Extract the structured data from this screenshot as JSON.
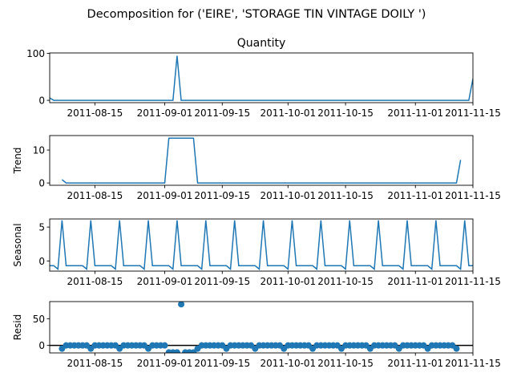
{
  "chart_data": {
    "type": "line",
    "title": "Decomposition for ('EIRE', 'STORAGE TIN VINTAGE DOILY ')",
    "x_start": "2011-08-04",
    "x_end": "2011-11-15",
    "x_ticks": [
      "2011-08-15",
      "2011-09-01",
      "2011-09-15",
      "2011-10-01",
      "2011-10-15",
      "2011-11-01",
      "2011-11-15"
    ],
    "line_color": "#1f77b4",
    "panels": [
      {
        "name": "quantity",
        "title": "Quantity",
        "ylabel": "",
        "kind": "line",
        "ylim": [
          -5,
          101
        ],
        "yticks": [
          "0",
          "100"
        ],
        "points": [
          [
            "2011-08-04",
            5
          ],
          [
            "2011-08-05",
            0
          ],
          [
            "2011-09-03",
            0
          ],
          [
            "2011-09-04",
            95
          ],
          [
            "2011-09-05",
            0
          ],
          [
            "2011-11-14",
            0
          ],
          [
            "2011-11-15",
            46
          ]
        ]
      },
      {
        "name": "trend",
        "title": "",
        "ylabel": "Trend",
        "kind": "line",
        "ylim": [
          -0.7,
          14.4
        ],
        "yticks": [
          "0",
          "10"
        ],
        "points": [
          [
            "2011-08-07",
            1
          ],
          [
            "2011-08-08",
            0
          ],
          [
            "2011-09-01",
            0
          ],
          [
            "2011-09-02",
            13.6
          ],
          [
            "2011-09-08",
            13.6
          ],
          [
            "2011-09-09",
            0
          ],
          [
            "2011-11-11",
            0
          ],
          [
            "2011-11-12",
            7
          ]
        ]
      },
      {
        "name": "seasonal",
        "title": "",
        "ylabel": "Seasonal",
        "kind": "seasonal",
        "ylim": [
          -1.5,
          6.2
        ],
        "period_start": "2011-08-07",
        "period_days": 7,
        "pattern": [
          6,
          -0.7,
          -0.7,
          -0.7,
          -0.7,
          -0.7,
          -1.2
        ],
        "before": [
          [
            "2011-08-04",
            -0.7
          ],
          [
            "2011-08-05",
            -0.7
          ],
          [
            "2011-08-06",
            -1.2
          ]
        ],
        "yticks": [
          "0",
          "5"
        ]
      },
      {
        "name": "resid",
        "title": "",
        "ylabel": "Resid",
        "kind": "scatter",
        "ylim": [
          -14,
          82
        ],
        "yticks": [
          "0",
          "50"
        ],
        "baseline": 0,
        "x_first": "2011-08-07",
        "y_values": [
          -6,
          0,
          0,
          0,
          0,
          0,
          0,
          -6,
          0,
          0,
          0,
          0,
          0,
          0,
          -6,
          0,
          0,
          0,
          0,
          0,
          0,
          -6,
          0,
          0,
          0,
          0,
          -13,
          -13,
          -13,
          77,
          -13,
          -13,
          -13,
          -6,
          0,
          0,
          0,
          0,
          0,
          0,
          -6,
          0,
          0,
          0,
          0,
          0,
          0,
          -6,
          0,
          0,
          0,
          0,
          0,
          0,
          -6,
          0,
          0,
          0,
          0,
          0,
          0,
          -6,
          0,
          0,
          0,
          0,
          0,
          0,
          -6,
          0,
          0,
          0,
          0,
          0,
          0,
          -6,
          0,
          0,
          0,
          0,
          0,
          0,
          -6,
          0,
          0,
          0,
          0,
          0,
          0,
          -6,
          0,
          0,
          0,
          0,
          0,
          0,
          -6
        ]
      }
    ]
  }
}
